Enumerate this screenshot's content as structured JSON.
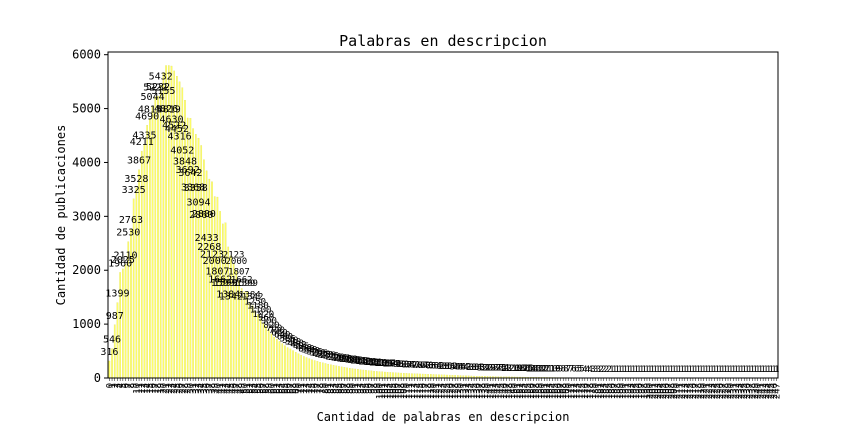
{
  "chart_data": {
    "type": "bar",
    "title": "Palabras en descripcion",
    "xlabel": "Cantidad de palabras en descripcion",
    "ylabel": "Cantidad de publicaciones",
    "ylim": [
      0,
      6050
    ],
    "yticks": [
      0,
      1000,
      2000,
      3000,
      4000,
      5000,
      6000
    ],
    "bar_color": "#ffff66",
    "bar_edge_color": "#e0e060",
    "values": [
      316,
      546,
      987,
      1399,
      1960,
      2025,
      2110,
      2530,
      2763,
      3325,
      3528,
      3867,
      4211,
      4335,
      4690,
      4815,
      5044,
      5222,
      5232,
      5432,
      5670,
      5800,
      5800,
      5790,
      5700,
      5600,
      5497,
      5388,
      5155,
      4826,
      4819,
      4630,
      4522,
      4452,
      4316,
      4052,
      3848,
      3692,
      3642,
      3368,
      3358,
      3094,
      2860,
      2880,
      2433,
      2268,
      2123,
      2000,
      1807,
      1662,
      1599,
      1599,
      1384,
      1342,
      1250,
      1180,
      1100,
      1020,
      960,
      900,
      820,
      760,
      720,
      680,
      640,
      600,
      565,
      540,
      510,
      480,
      452,
      425,
      400,
      380,
      360,
      340,
      325,
      310,
      295,
      282,
      270,
      258,
      246,
      236,
      226,
      216,
      207,
      198,
      190,
      182,
      175,
      168,
      161,
      155,
      149,
      143,
      138,
      133,
      128,
      123,
      119,
      115,
      111,
      107,
      104,
      101,
      98,
      95,
      92,
      89,
      87,
      84,
      82,
      80,
      78,
      76,
      74,
      72,
      70,
      68,
      66,
      64,
      62,
      60,
      58,
      56,
      54,
      52,
      50,
      48,
      46,
      44,
      42,
      40,
      38,
      36,
      34,
      33,
      32,
      31,
      30,
      29,
      28,
      27,
      26,
      25,
      24,
      23,
      22,
      21,
      20,
      19,
      18,
      17,
      16,
      15,
      14,
      14,
      13,
      13,
      12,
      12,
      11,
      11,
      10,
      10,
      9,
      9,
      8,
      8,
      7,
      7,
      6,
      6,
      5,
      5,
      4,
      4,
      4,
      3,
      3,
      3,
      2,
      2,
      2,
      2,
      1,
      1,
      1,
      1,
      1,
      1,
      1,
      1,
      1,
      1,
      1,
      1,
      1,
      1,
      1,
      1,
      1,
      1,
      1,
      1,
      1,
      1,
      1,
      1,
      1,
      1,
      1,
      1,
      1,
      1,
      1,
      1,
      1,
      1,
      1,
      1,
      1,
      1,
      1,
      1,
      1,
      1,
      1,
      1,
      1,
      1,
      1,
      1,
      1,
      1,
      1,
      1,
      1,
      1,
      1,
      1,
      1,
      1,
      1,
      1,
      1,
      1
    ],
    "labeled_values": [
      316,
      546,
      987,
      1399,
      1960,
      2025,
      2110,
      2530,
      2763,
      3325,
      3528,
      3867,
      4211,
      4335,
      4690,
      4815,
      5044,
      5222,
      5232,
      5432,
      5155,
      4826,
      4819,
      4630,
      4522,
      4452,
      4316,
      4052,
      3848,
      3692,
      3642,
      3368,
      3358,
      3094,
      2860,
      2880,
      2433,
      2268,
      2123,
      2000,
      1807,
      1662,
      1599,
      1599,
      1384,
      1342
    ]
  }
}
